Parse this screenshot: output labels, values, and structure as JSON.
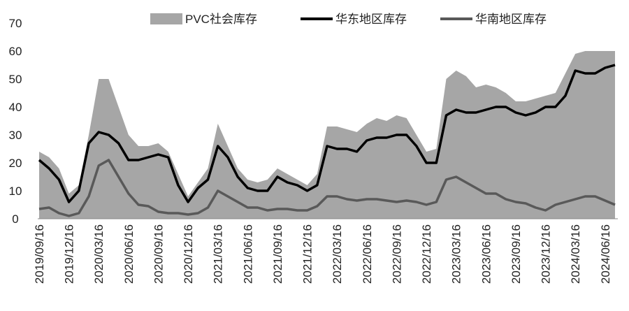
{
  "chart_data": {
    "type": "line",
    "categories": [
      "2019/09/16",
      null,
      null,
      "2019/12/16",
      null,
      null,
      "2020/03/16",
      null,
      null,
      "2020/06/16",
      null,
      null,
      "2020/09/16",
      null,
      null,
      "2020/12/16",
      null,
      null,
      "2021/03/16",
      null,
      null,
      "2021/06/16",
      null,
      null,
      "2021/09/16",
      null,
      null,
      "2021/12/16",
      null,
      null,
      "2022/03/16",
      null,
      null,
      "2022/06/16",
      null,
      null,
      "2022/09/16",
      null,
      null,
      "2022/12/16",
      null,
      null,
      "2023/03/16",
      null,
      null,
      "2023/06/16",
      null,
      null,
      "2023/09/16",
      null,
      null,
      "2023/12/16",
      null,
      null,
      "2024/03/16",
      null,
      null,
      "2024/06/16",
      null
    ],
    "series": [
      {
        "name": "PVC社会库存",
        "type": "area",
        "color": "#a6a6a6",
        "values": [
          24,
          22,
          18,
          9,
          12,
          30,
          50,
          50,
          40,
          30,
          26,
          26,
          27,
          24,
          16,
          8,
          13,
          18,
          34,
          26,
          18,
          14,
          13,
          14,
          18,
          16,
          14,
          12,
          16,
          33,
          33,
          32,
          31,
          34,
          36,
          35,
          37,
          36,
          30,
          24,
          25,
          50,
          53,
          51,
          47,
          48,
          47,
          45,
          42,
          42,
          43,
          44,
          45,
          52,
          59,
          60,
          60,
          60,
          60
        ]
      },
      {
        "name": "华东地区库存",
        "type": "line",
        "color": "#000000",
        "values": [
          21,
          18,
          14,
          6,
          10,
          27,
          31,
          30,
          27,
          21,
          21,
          22,
          23,
          22,
          12,
          6,
          11,
          14,
          26,
          22,
          15,
          11,
          10,
          10,
          15,
          13,
          12,
          10,
          12,
          26,
          25,
          25,
          24,
          28,
          29,
          29,
          30,
          30,
          26,
          20,
          20,
          37,
          39,
          38,
          38,
          39,
          40,
          40,
          38,
          37,
          38,
          40,
          40,
          44,
          53,
          52,
          52,
          54,
          55
        ]
      },
      {
        "name": "华南地区库存",
        "type": "line",
        "color": "#595959",
        "values": [
          3.5,
          4,
          2,
          1,
          2,
          8,
          19,
          21,
          15,
          9,
          5,
          4.5,
          2.5,
          2,
          2,
          1.5,
          2,
          4,
          10,
          8,
          6,
          4,
          4,
          3,
          3.5,
          3.5,
          3,
          3,
          4.5,
          8,
          8,
          7,
          6.5,
          7,
          7,
          6.5,
          6,
          6.5,
          6,
          5,
          6,
          14,
          15,
          13,
          11,
          9,
          9,
          7,
          6,
          5.5,
          4,
          3,
          5,
          6,
          7,
          8,
          8,
          6.5,
          5
        ]
      }
    ],
    "ylim": [
      0,
      70
    ],
    "yticks": [
      0,
      10,
      20,
      30,
      40,
      50,
      60,
      70
    ],
    "grid": false
  }
}
